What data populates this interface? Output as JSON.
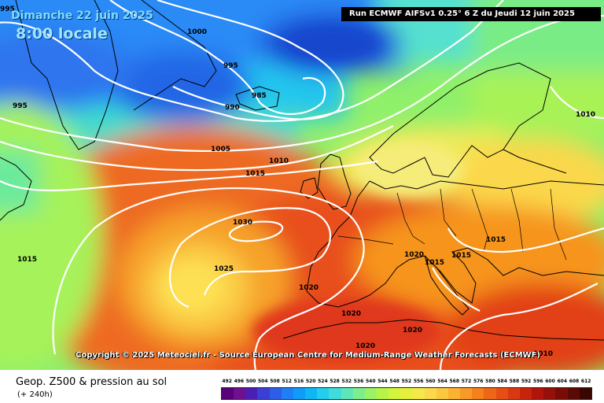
{
  "overlay": {
    "date": "Dimanche 22 juin 2025",
    "time": "8:00 locale",
    "run": "Run ECMWF AIFSv1 0.25° 6 Z du Jeudi 12 juin 2025",
    "copyright": "Copyright © 2025 Meteociel.fr - Source European Centre for Medium-Range Weather Forecasts (ECMWF)"
  },
  "footer": {
    "title": "Geop. Z500 & pression au sol",
    "subtitle": "(+ 240h)"
  },
  "isobars": [
    {
      "label": "995"
    },
    {
      "label": "1000"
    },
    {
      "label": "995"
    },
    {
      "label": "990"
    },
    {
      "label": "985"
    },
    {
      "label": "995"
    },
    {
      "label": "1005"
    },
    {
      "label": "1010"
    },
    {
      "label": "1015"
    },
    {
      "label": "1030"
    },
    {
      "label": "1025"
    },
    {
      "label": "1020"
    },
    {
      "label": "1015"
    },
    {
      "label": "1020"
    },
    {
      "label": "1015"
    },
    {
      "label": "1015"
    },
    {
      "label": "1015"
    },
    {
      "label": "1010"
    },
    {
      "label": "1020"
    },
    {
      "label": "1020"
    },
    {
      "label": "1020"
    },
    {
      "label": "1010"
    }
  ],
  "legend": {
    "values": [
      "492",
      "496",
      "500",
      "504",
      "508",
      "512",
      "516",
      "520",
      "524",
      "528",
      "532",
      "536",
      "540",
      "544",
      "548",
      "552",
      "556",
      "560",
      "564",
      "568",
      "572",
      "576",
      "580",
      "584",
      "588",
      "592",
      "596",
      "600",
      "604",
      "608",
      "612"
    ],
    "colors": [
      "#5a0078",
      "#6e1090",
      "#4b1fb4",
      "#3b3fd6",
      "#2c5ee8",
      "#1f7ff4",
      "#119bf8",
      "#0fb6f6",
      "#22cdee",
      "#3fdcda",
      "#5fe6b8",
      "#7eee8c",
      "#9cf266",
      "#b8f448",
      "#d2f43a",
      "#e6f03c",
      "#f6e84a",
      "#fbd84c",
      "#fcc840",
      "#fbb232",
      "#f89a28",
      "#f4801e",
      "#ee6618",
      "#e64e14",
      "#da3810",
      "#c8240c",
      "#b0140a",
      "#941008",
      "#7a0c06",
      "#5c0a04",
      "#3a0602"
    ]
  }
}
